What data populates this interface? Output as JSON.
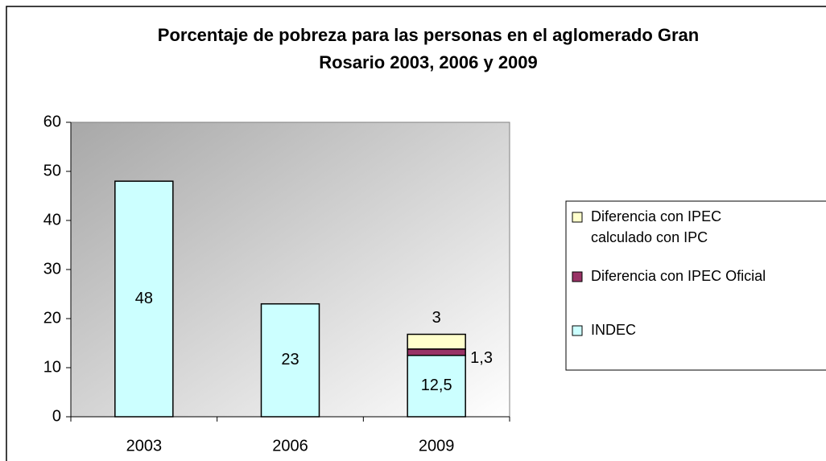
{
  "chart_data": {
    "type": "stacked_bar",
    "title": "Porcentaje de pobreza para las personas en el aglomerado Gran Rosario 2003, 2006 y 2009",
    "categories": [
      "2003",
      "2006",
      "2009"
    ],
    "series": [
      {
        "name": "INDEC",
        "color": "#ccffff",
        "values": [
          48,
          23,
          12.5
        ],
        "value_labels": [
          "48",
          "23",
          "12,5"
        ]
      },
      {
        "name": "Diferencia con IPEC Oficial",
        "color": "#993366",
        "values": [
          null,
          null,
          1.3
        ],
        "value_labels": [
          null,
          null,
          "1,3"
        ]
      },
      {
        "name": "Diferencia con IPEC calculado con IPC",
        "color": "#ffffcc",
        "values": [
          null,
          null,
          3
        ],
        "value_labels": [
          null,
          null,
          "3"
        ]
      }
    ],
    "ylim": [
      0,
      60
    ],
    "yticks": [
      0,
      10,
      20,
      30,
      40,
      50,
      60
    ],
    "legend": "right"
  }
}
